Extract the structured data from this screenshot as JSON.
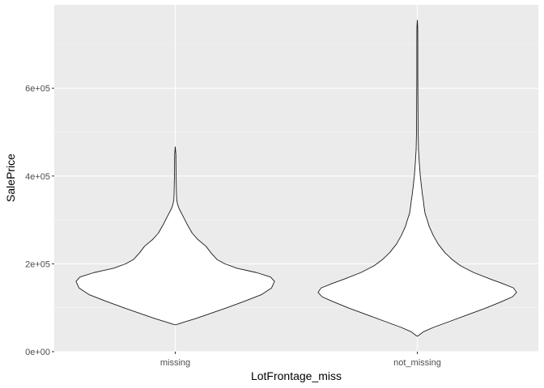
{
  "chart_data": {
    "type": "violin",
    "title": "",
    "xlabel": "LotFrontage_miss",
    "ylabel": "SalePrice",
    "categories": [
      "missing",
      "not_missing"
    ],
    "ylim": [
      0,
      790000
    ],
    "yticks": [
      {
        "value": 0,
        "label": "0e+00"
      },
      {
        "value": 200000,
        "label": "2e+05"
      },
      {
        "value": 400000,
        "label": "4e+05"
      },
      {
        "value": 600000,
        "label": "6e+05"
      }
    ],
    "grid": true,
    "legend": "none",
    "series": [
      {
        "category": "missing",
        "min": 61000,
        "max": 466500,
        "profile": [
          [
            61000,
            0.0
          ],
          [
            63000,
            0.03
          ],
          [
            68000,
            0.1
          ],
          [
            75000,
            0.2
          ],
          [
            85000,
            0.33
          ],
          [
            100000,
            0.52
          ],
          [
            115000,
            0.7
          ],
          [
            130000,
            0.87
          ],
          [
            145000,
            0.97
          ],
          [
            160000,
            1.0
          ],
          [
            170000,
            0.96
          ],
          [
            180000,
            0.82
          ],
          [
            190000,
            0.62
          ],
          [
            200000,
            0.5
          ],
          [
            210000,
            0.42
          ],
          [
            225000,
            0.36
          ],
          [
            240000,
            0.31
          ],
          [
            255000,
            0.23
          ],
          [
            270000,
            0.17
          ],
          [
            290000,
            0.12
          ],
          [
            310000,
            0.075
          ],
          [
            325000,
            0.04
          ],
          [
            335000,
            0.024
          ],
          [
            345000,
            0.015
          ],
          [
            360000,
            0.012
          ],
          [
            380000,
            0.01
          ],
          [
            400000,
            0.008
          ],
          [
            425000,
            0.007
          ],
          [
            450000,
            0.006
          ],
          [
            466500,
            0.0
          ]
        ]
      },
      {
        "category": "not_missing",
        "min": 34900,
        "max": 755000,
        "profile": [
          [
            34900,
            0.0
          ],
          [
            38000,
            0.02
          ],
          [
            45000,
            0.06
          ],
          [
            55000,
            0.16
          ],
          [
            70000,
            0.34
          ],
          [
            85000,
            0.52
          ],
          [
            100000,
            0.7
          ],
          [
            115000,
            0.86
          ],
          [
            125000,
            0.96
          ],
          [
            135000,
            1.0
          ],
          [
            145000,
            0.97
          ],
          [
            155000,
            0.86
          ],
          [
            165000,
            0.74
          ],
          [
            180000,
            0.57
          ],
          [
            195000,
            0.44
          ],
          [
            210000,
            0.35
          ],
          [
            225000,
            0.28
          ],
          [
            245000,
            0.21
          ],
          [
            265000,
            0.16
          ],
          [
            285000,
            0.12
          ],
          [
            300000,
            0.1
          ],
          [
            315000,
            0.078
          ],
          [
            330000,
            0.068
          ],
          [
            345000,
            0.06
          ],
          [
            360000,
            0.05
          ],
          [
            380000,
            0.04
          ],
          [
            400000,
            0.03
          ],
          [
            430000,
            0.02
          ],
          [
            460000,
            0.012
          ],
          [
            500000,
            0.008
          ],
          [
            540000,
            0.007
          ],
          [
            580000,
            0.006
          ],
          [
            620000,
            0.005
          ],
          [
            660000,
            0.005
          ],
          [
            700000,
            0.005
          ],
          [
            740000,
            0.004
          ],
          [
            755000,
            0.0
          ]
        ]
      }
    ]
  }
}
